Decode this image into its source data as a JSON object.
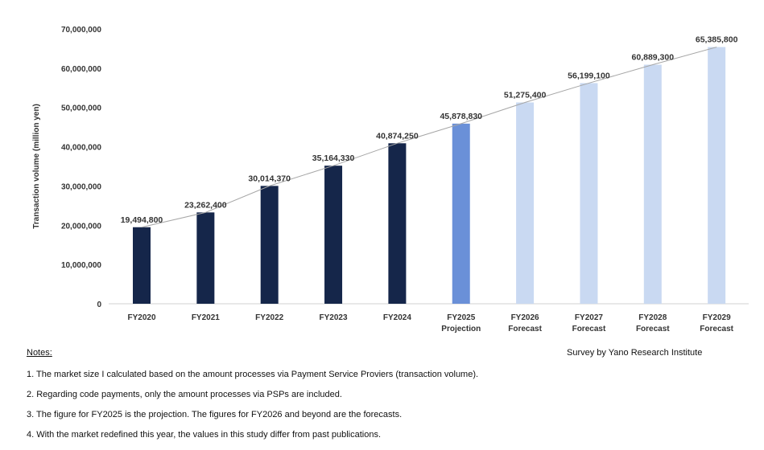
{
  "chart_data": {
    "type": "bar",
    "title": "",
    "ylabel": "Transaction volume (million yen)",
    "xlabel": "",
    "ylim": [
      0,
      70000000
    ],
    "yticks": [
      "0",
      "10,000,000",
      "20,000,000",
      "30,000,000",
      "40,000,000",
      "50,000,000",
      "60,000,000",
      "70,000,000"
    ],
    "grid": false,
    "categories": [
      "FY2020",
      "FY2021",
      "FY2022",
      "FY2023",
      "FY2024",
      "FY2025",
      "FY2026",
      "FY2027",
      "FY2028",
      "FY2029"
    ],
    "category_sublabels": [
      "",
      "",
      "",
      "",
      "",
      "Projection",
      "Forecast",
      "Forecast",
      "Forecast",
      "Forecast"
    ],
    "values": [
      19494800,
      23262400,
      30014370,
      35164330,
      40874250,
      45878830,
      51275400,
      56199100,
      60889300,
      65385800
    ],
    "data_labels": [
      "19,494,800",
      "23,262,400",
      "30,014,370",
      "35,164,330",
      "40,874,250",
      "45,878,830",
      "51,275,400",
      "56,199,100",
      "60,889,300",
      "65,385,800"
    ],
    "bar_kinds": [
      "actual",
      "actual",
      "actual",
      "actual",
      "actual",
      "projection",
      "forecast",
      "forecast",
      "forecast",
      "forecast"
    ],
    "colors": {
      "actual": "#15264a",
      "projection": "#6a90d8",
      "forecast": "#c9d9f2",
      "trend_line": "#a6a6a6",
      "axis": "#d0d0d0"
    },
    "trend_line": true
  },
  "notes": {
    "title": "Notes:",
    "items": [
      "1. The market size I calculated based on the amount processes via Payment Service Proviers (transaction volume).",
      "2. Regarding code payments, only the amount processes via PSPs are included.",
      "3. The figure for FY2025 is the projection. The figures for FY2026 and beyond are the forecasts.",
      "4. With the market redefined this year, the values in this study differ from past publications."
    ]
  },
  "source": "Survey by Yano Research Institute"
}
